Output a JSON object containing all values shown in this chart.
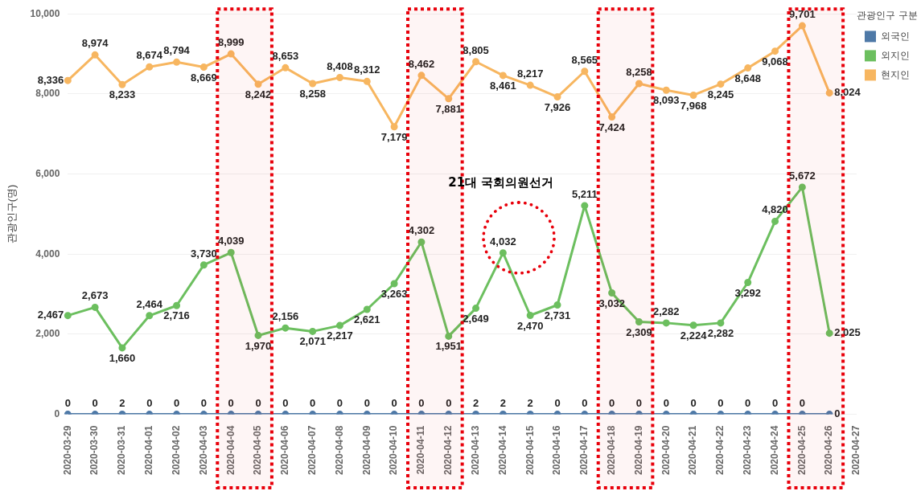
{
  "chart_data": {
    "type": "line",
    "ylabel": "관광인구(명)",
    "legend_title": "관광인구 구분",
    "legend": "top right",
    "grid": "y",
    "marker": "circle",
    "line_style": "solid",
    "data_labels": true,
    "categories": [
      "2020-03-29",
      "2020-03-30",
      "2020-03-31",
      "2020-04-01",
      "2020-04-02",
      "2020-04-03",
      "2020-04-04",
      "2020-04-05",
      "2020-04-06",
      "2020-04-07",
      "2020-04-08",
      "2020-04-09",
      "2020-04-10",
      "2020-04-11",
      "2020-04-12",
      "2020-04-13",
      "2020-04-14",
      "2020-04-15",
      "2020-04-16",
      "2020-04-17",
      "2020-04-18",
      "2020-04-19",
      "2020-04-20",
      "2020-04-21",
      "2020-04-22",
      "2020-04-23",
      "2020-04-24",
      "2020-04-25",
      "2020-04-26",
      "2020-04-27"
    ],
    "ylim": [
      0,
      10000
    ],
    "yticks": [
      {
        "value": 0,
        "label": "0"
      },
      {
        "value": 2000,
        "label": "2,000"
      },
      {
        "value": 4000,
        "label": "4,000"
      },
      {
        "value": 6000,
        "label": "6,000"
      },
      {
        "value": 8000,
        "label": "8,000"
      },
      {
        "value": 10000,
        "label": "10,000"
      }
    ],
    "series": [
      {
        "name": "외국인",
        "color": "#4e79a7",
        "values": [
          0,
          0,
          2,
          0,
          0,
          0,
          0,
          0,
          0,
          0,
          0,
          0,
          0,
          0,
          0,
          2,
          2,
          2,
          0,
          0,
          0,
          0,
          0,
          0,
          0,
          0,
          0,
          0,
          0,
          null
        ],
        "value_labels": [
          "0",
          "0",
          "2",
          "0",
          "0",
          "0",
          "0",
          "0",
          "0",
          "0",
          "0",
          "0",
          "0",
          "0",
          "0",
          "2",
          "2",
          "2",
          "0",
          "0",
          "0",
          "0",
          "0",
          "0",
          "0",
          "0",
          "0",
          "0",
          "0",
          null
        ]
      },
      {
        "name": "외지인",
        "color": "#6cbf5f",
        "values": [
          2467,
          2673,
          1660,
          2464,
          2716,
          3730,
          4039,
          1970,
          2156,
          2071,
          2217,
          2621,
          3263,
          4302,
          1951,
          2649,
          4032,
          2470,
          2731,
          5211,
          3032,
          2309,
          2282,
          2224,
          2282,
          3292,
          4820,
          5672,
          2025,
          null
        ],
        "value_labels": [
          "2,467",
          "2,673",
          "1,660",
          "2,464",
          "2,716",
          "3,730",
          "4,039",
          "1,970",
          "2,156",
          "2,071",
          "2,217",
          "2,621",
          "3,263",
          "4,302",
          "1,951",
          "2,649",
          "4,032",
          "2,470",
          "2,731",
          "5,211",
          "3,032",
          "2,309",
          "2,282",
          "2,224",
          "2,282",
          "3,292",
          "4,820",
          "5,672",
          "2,025",
          null
        ]
      },
      {
        "name": "현지인",
        "color": "#f7b660",
        "values": [
          8336,
          8974,
          8233,
          8674,
          8794,
          8669,
          8999,
          8242,
          8653,
          8258,
          8408,
          8312,
          7179,
          8462,
          7881,
          8805,
          8461,
          8217,
          7926,
          8565,
          7424,
          8258,
          8093,
          7968,
          8245,
          8648,
          9068,
          9701,
          8024,
          null
        ],
        "value_labels": [
          "8,336",
          "8,974",
          "8,233",
          "8,674",
          "8,794",
          "8,669",
          "8,999",
          "8,242",
          "8,653",
          "8,258",
          "8,408",
          "8,312",
          "7,179",
          "8,462",
          "7,881",
          "8,805",
          "8,461",
          "8,217",
          "7,926",
          "8,565",
          "7,424",
          "8,258",
          "8,093",
          "7,968",
          "8,245",
          "8,648",
          "9,068",
          "9,701",
          "8,024",
          null
        ]
      }
    ],
    "bands": [
      {
        "axis": "x",
        "from": "2020-04-04",
        "to": "2020-04-05",
        "color": "#e8000b"
      },
      {
        "axis": "x",
        "from": "2020-04-11",
        "to": "2020-04-12",
        "color": "#e8000b"
      },
      {
        "axis": "x",
        "from": "2020-04-18",
        "to": "2020-04-19",
        "color": "#e8000b"
      },
      {
        "axis": "x",
        "from": "2020-04-25",
        "to": "2020-04-26",
        "color": "#e8000b"
      }
    ],
    "annotations": [
      "21대 국회의원선거"
    ]
  }
}
